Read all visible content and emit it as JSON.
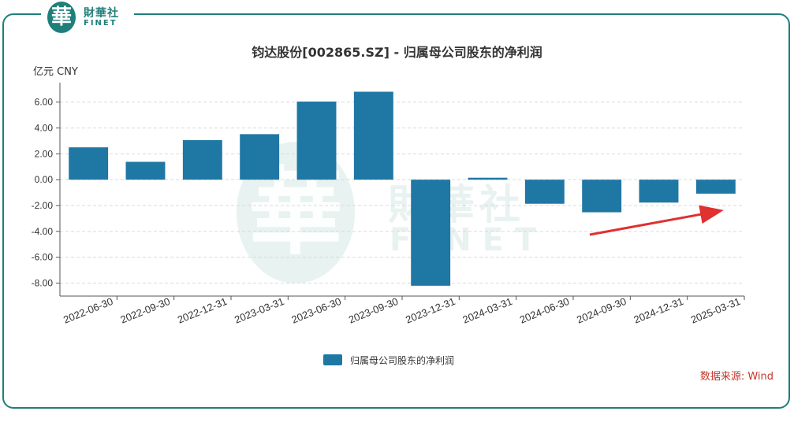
{
  "brand": {
    "seal_char": "華",
    "name_cn": "財華社",
    "name_en": "FINET"
  },
  "watermark": {
    "seal_char": "華",
    "name_cn": "財華社",
    "name_en": "FINET"
  },
  "source": "数据来源: Wind",
  "colors": {
    "bar": "#1f77a4",
    "frame": "#1f7f7a",
    "arrow": "#e03030",
    "source_text": "#c0392b"
  },
  "chart_data": {
    "type": "bar",
    "title": "钧达股份[002865.SZ] - 归属母公司股东的净利润",
    "unit": "亿元  CNY",
    "categories": [
      "2022-06-30",
      "2022-09-30",
      "2022-12-31",
      "2023-03-31",
      "2023-06-30",
      "2023-09-30",
      "2023-12-31",
      "2024-03-31",
      "2024-06-30",
      "2024-09-30",
      "2024-12-31",
      "2025-03-31"
    ],
    "series": [
      {
        "name": "归属母公司股东的净利润",
        "values": [
          2.5,
          1.38,
          3.06,
          3.52,
          6.04,
          6.8,
          -8.2,
          0.15,
          -1.86,
          -2.52,
          -1.77,
          -1.08
        ]
      }
    ],
    "ylim": [
      -9.0,
      7.5
    ],
    "yticks": [
      -8.0,
      -6.0,
      -4.0,
      -2.0,
      0.0,
      2.0,
      4.0,
      6.0
    ],
    "ytick_labels": [
      "-8.00",
      "-6.00",
      "-4.00",
      "-2.00",
      "0.00",
      "2.00",
      "4.00",
      "6.00"
    ],
    "grid": true,
    "legend_position": "bottom-center",
    "annotation": "red-arrow-upward-trend"
  }
}
